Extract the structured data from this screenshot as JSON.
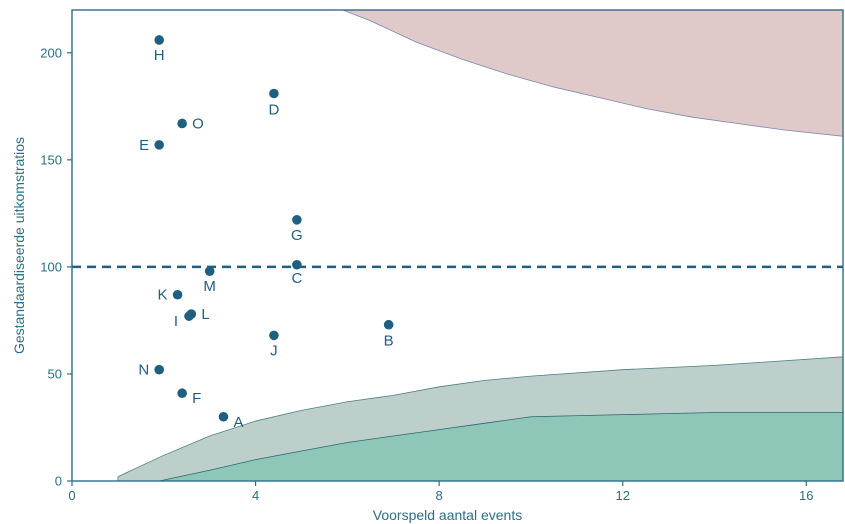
{
  "chart_data": {
    "type": "scatter",
    "xlabel": "Voorspeld aantal events",
    "ylabel": "Gestandaardiseerde uitkomstratios",
    "xlim": [
      0,
      16.8
    ],
    "ylim": [
      0,
      220
    ],
    "x_ticks": [
      0,
      4,
      8,
      12,
      16
    ],
    "y_ticks": [
      0,
      50,
      100,
      150,
      200
    ],
    "reference_line": {
      "y": 100,
      "style": "dashed"
    },
    "grid": false,
    "colors": {
      "axis": "#2a6f87",
      "point": "#1f5f80",
      "dashed_line": "#1f5f80",
      "upper_band": "#dfc9c9",
      "outer_lower_band": "#bccfca",
      "inner_lower_band": "#8ec6b8"
    },
    "points": [
      {
        "label": "H",
        "x": 1.9,
        "y": 206
      },
      {
        "label": "D",
        "x": 4.4,
        "y": 181
      },
      {
        "label": "O",
        "x": 2.4,
        "y": 167
      },
      {
        "label": "E",
        "x": 1.9,
        "y": 157
      },
      {
        "label": "G",
        "x": 4.9,
        "y": 122
      },
      {
        "label": "C",
        "x": 4.9,
        "y": 101
      },
      {
        "label": "M",
        "x": 3.0,
        "y": 98
      },
      {
        "label": "K",
        "x": 2.3,
        "y": 87
      },
      {
        "label": "L",
        "x": 2.6,
        "y": 78
      },
      {
        "label": "I",
        "x": 2.55,
        "y": 77
      },
      {
        "label": "B",
        "x": 6.9,
        "y": 73
      },
      {
        "label": "J",
        "x": 4.4,
        "y": 68
      },
      {
        "label": "N",
        "x": 1.9,
        "y": 52
      },
      {
        "label": "F",
        "x": 2.4,
        "y": 41
      },
      {
        "label": "A",
        "x": 3.3,
        "y": 30
      }
    ],
    "bands": {
      "upper": [
        [
          5.9,
          220
        ],
        [
          6.5,
          215
        ],
        [
          7.5,
          205
        ],
        [
          8.5,
          197
        ],
        [
          9.5,
          190
        ],
        [
          10.5,
          184
        ],
        [
          11.5,
          179
        ],
        [
          12.5,
          174
        ],
        [
          13.5,
          170
        ],
        [
          14.5,
          167
        ],
        [
          15.5,
          164
        ],
        [
          16.8,
          161
        ]
      ],
      "outer_lower": [
        [
          1.0,
          2
        ],
        [
          2.0,
          12
        ],
        [
          3.0,
          21
        ],
        [
          4.0,
          28
        ],
        [
          5.0,
          33
        ],
        [
          6.0,
          37
        ],
        [
          7.0,
          40
        ],
        [
          8.0,
          44
        ],
        [
          9.0,
          47
        ],
        [
          10.0,
          49
        ],
        [
          12.0,
          52
        ],
        [
          14.0,
          54
        ],
        [
          16.8,
          58
        ]
      ],
      "inner_lower": [
        [
          1.9,
          0
        ],
        [
          3.0,
          5
        ],
        [
          4.0,
          10
        ],
        [
          5.0,
          14
        ],
        [
          6.0,
          18
        ],
        [
          7.0,
          21
        ],
        [
          8.0,
          24
        ],
        [
          9.0,
          27
        ],
        [
          10.0,
          30
        ],
        [
          12.0,
          31
        ],
        [
          14.0,
          32
        ],
        [
          16.8,
          32
        ]
      ]
    }
  }
}
